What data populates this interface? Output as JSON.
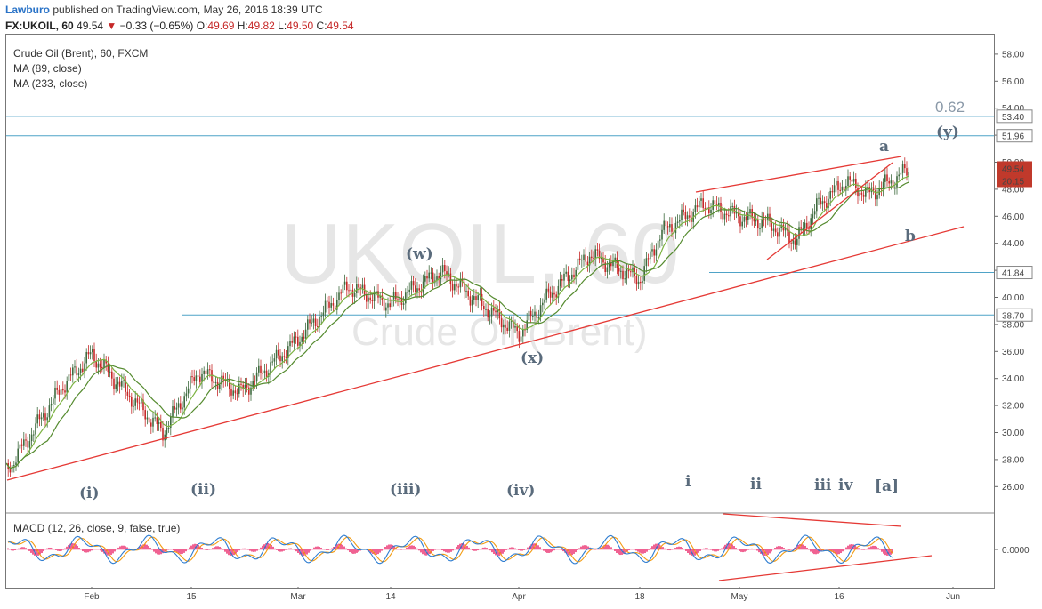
{
  "header": {
    "author": "Lawburo",
    "publish_text": "published on TradingView.com, May 26, 2016 18:39 UTC",
    "symbol": "FX:UKOIL, 60",
    "last": "49.54",
    "arrow": "▼",
    "change": "−0.33 (−0.65%)",
    "ohlc_o_label": "O:",
    "ohlc_o": "49.69",
    "ohlc_h_label": "H:",
    "ohlc_h": "49.82",
    "ohlc_l_label": "L:",
    "ohlc_l": "49.50",
    "ohlc_c_label": "C:",
    "ohlc_c": "49.54"
  },
  "legend": {
    "title": "Crude Oil (Brent), 60, FXCM",
    "ma1": "MA (89, close)",
    "ma2": "MA (233, close)",
    "macd": "MACD (12, 26, close, 9, false, true)"
  },
  "watermark": {
    "symbol": "UKOIL, 60",
    "name": "Crude Oil (Brent)"
  },
  "colors": {
    "trendline": "#e53935",
    "level_line": "#4fa3c7",
    "ma89": "#7cb342",
    "ma233": "#558b2f",
    "candle_up": "#3f6b3f",
    "candle_down": "#c62828",
    "price_tag": "#c0392b",
    "macd_line": "#2e7dd1",
    "signal_line": "#f39c12",
    "hist": "#e91e63",
    "wave_label": "#5a6b7c"
  },
  "chart_data": {
    "type": "candlestick",
    "title": "Crude Oil (Brent), 60, FXCM",
    "symbol": "FX:UKOIL",
    "ylim": [
      25,
      59.5
    ],
    "y_ticks": [
      "26.00",
      "28.00",
      "30.00",
      "32.00",
      "34.00",
      "36.00",
      "38.00",
      "40.00",
      "42.00",
      "44.00",
      "46.00",
      "48.00",
      "50.00",
      "52.00",
      "54.00",
      "56.00",
      "58.00"
    ],
    "x_ticks": [
      "Feb",
      "15",
      "Mar",
      "14",
      "Apr",
      "18",
      "May",
      "16",
      "Jun"
    ],
    "approx_path": {
      "dates": [
        "2016-01-20",
        "2016-01-28",
        "2016-02-01",
        "2016-02-11",
        "2016-02-16",
        "2016-02-22",
        "2016-02-29",
        "2016-03-08",
        "2016-03-14",
        "2016-03-21",
        "2016-04-01",
        "2016-04-05",
        "2016-04-11",
        "2016-04-18",
        "2016-04-21",
        "2016-04-27",
        "2016-05-02",
        "2016-05-06",
        "2016-05-10",
        "2016-05-13",
        "2016-05-17",
        "2016-05-20",
        "2016-05-24",
        "2016-05-26"
      ],
      "close": [
        27.1,
        33.5,
        35.8,
        30.0,
        34.5,
        33.0,
        36.4,
        40.8,
        39.5,
        41.9,
        37.3,
        40.0,
        43.2,
        41.3,
        44.8,
        46.9,
        46.0,
        45.5,
        44.2,
        46.8,
        48.6,
        47.6,
        48.8,
        49.54
      ]
    },
    "price_tags": {
      "last": "49.54",
      "timer": "20:15"
    },
    "level_tags": [
      "53.40",
      "51.96",
      "41.84",
      "38.70"
    ],
    "fib_label": "0.62",
    "wave_labels": [
      "(i)",
      "(ii)",
      "(iii)",
      "(iv)",
      "(w)",
      "(x)",
      "(y)",
      "a",
      "b",
      "i",
      "ii",
      "iii",
      "iv",
      "[a]"
    ],
    "macd": {
      "zero_label": "0.0000"
    }
  }
}
